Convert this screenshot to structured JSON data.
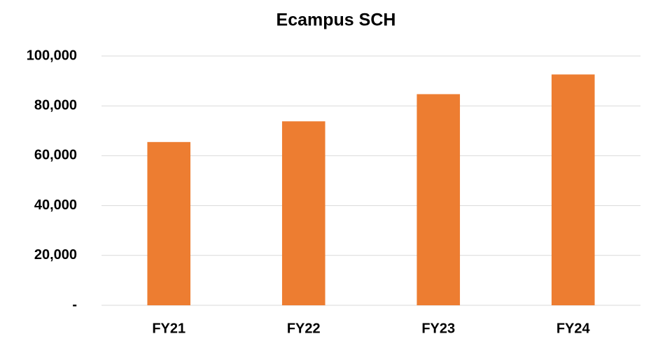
{
  "chart_data": {
    "type": "bar",
    "title": "Ecampus SCH",
    "categories": [
      "FY21",
      "FY22",
      "FY23",
      "FY24"
    ],
    "values": [
      65500,
      73800,
      84700,
      92600
    ],
    "color": "#ed7d31",
    "ylim": [
      0,
      100000
    ],
    "yticks": [
      {
        "value": 0,
        "label": "-"
      },
      {
        "value": 20000,
        "label": "20,000"
      },
      {
        "value": 40000,
        "label": "40,000"
      },
      {
        "value": 60000,
        "label": "60,000"
      },
      {
        "value": 80000,
        "label": "80,000"
      },
      {
        "value": 100000,
        "label": "100,000"
      }
    ],
    "grid": true
  }
}
